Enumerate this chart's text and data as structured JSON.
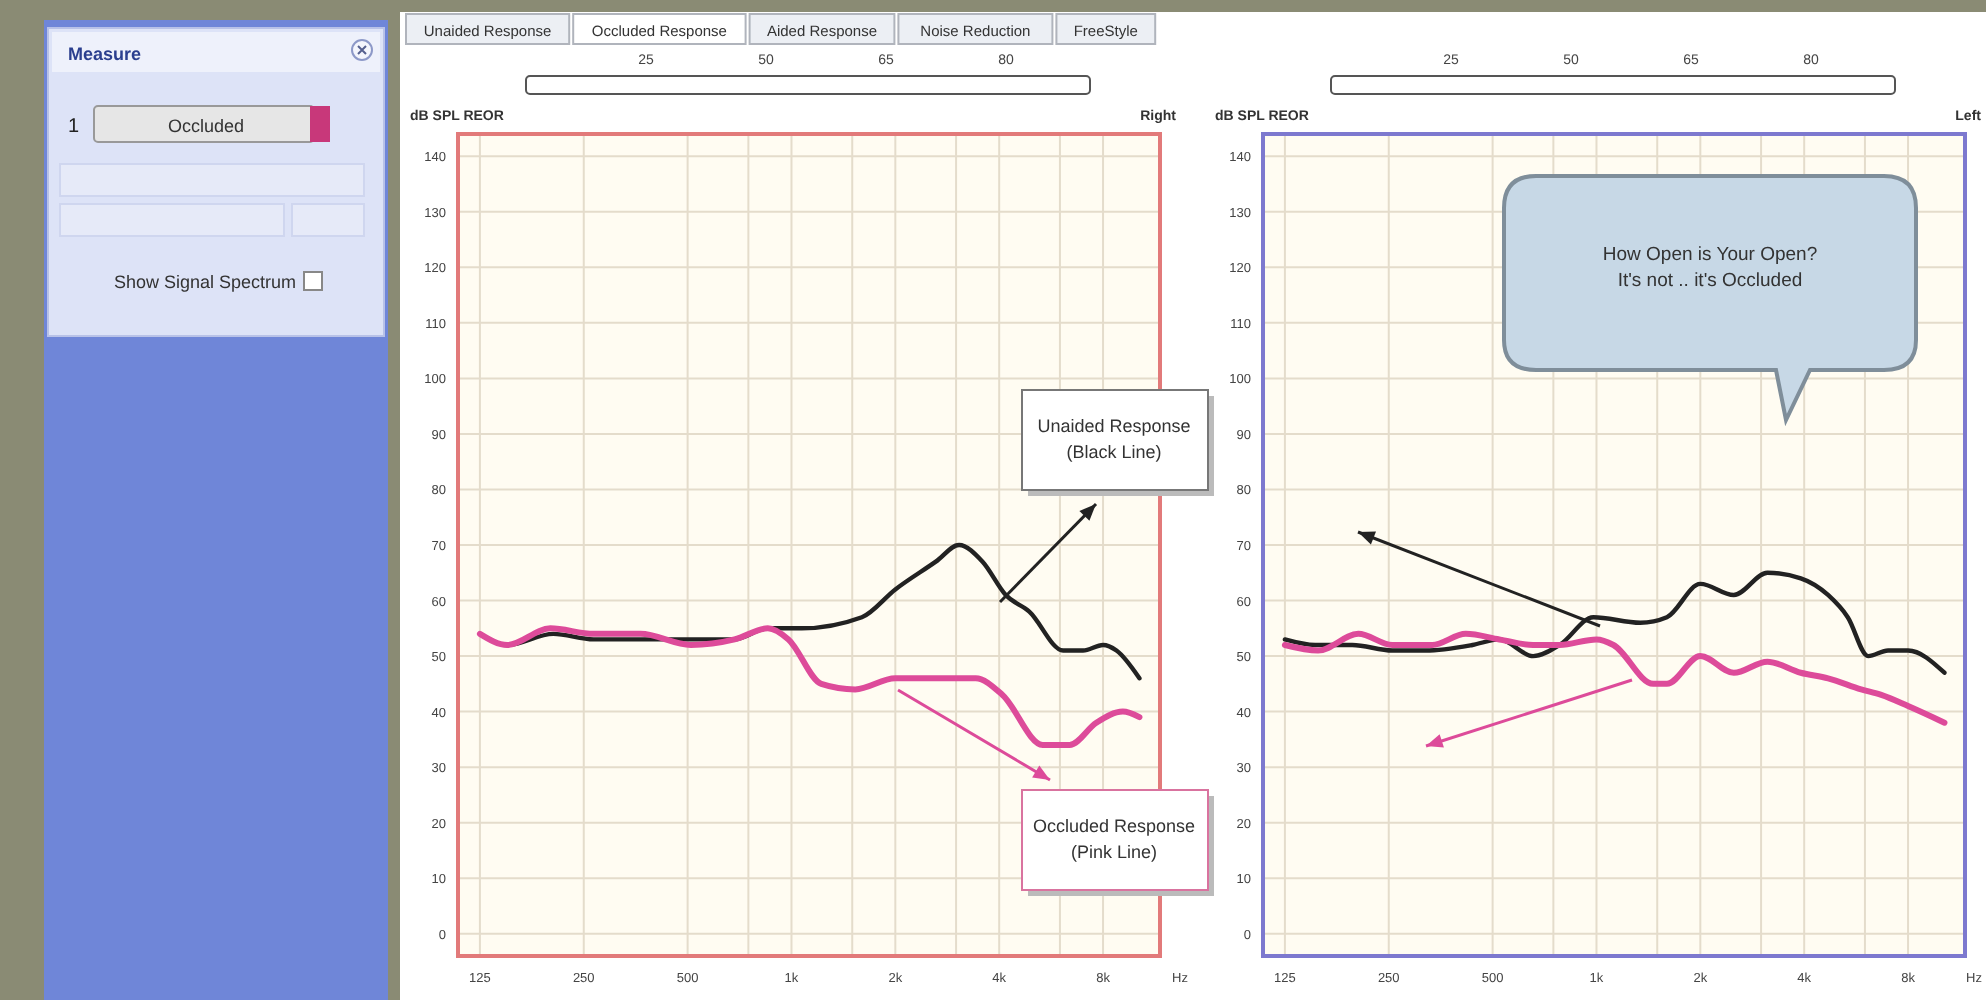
{
  "chart_data": [
    {
      "type": "other",
      "title": "Measure",
      "annotations": [
        "1",
        "Occluded",
        "Show Signal Spectrum",
        "Unaided Response",
        "Occluded Response",
        "Aided Response",
        "Noise Reduction",
        "FreeStyle"
      ]
    },
    {
      "type": "line",
      "title": "Right",
      "ylabel": "dB SPL REOR",
      "xlabel": "Hz",
      "log": "x",
      "grid": true,
      "xlim": [
        108,
        11700
      ],
      "ylim": [
        -4,
        144
      ],
      "xticks": [
        125,
        250,
        500,
        {
          "value": 750,
          "label": null
        },
        {
          "value": 1000,
          "label": "1k"
        },
        {
          "value": 1500,
          "label": null
        },
        {
          "value": 2000,
          "label": "2k"
        },
        {
          "value": 3000,
          "label": null
        },
        {
          "value": 4000,
          "label": "4k"
        },
        {
          "value": 6000,
          "label": null
        },
        {
          "value": 8000,
          "label": "8k"
        }
      ],
      "yticks": [
        0,
        10,
        20,
        30,
        40,
        50,
        60,
        70,
        80,
        90,
        100,
        110,
        120,
        130,
        140
      ],
      "annotations": [
        "25",
        "50",
        "65",
        "80",
        "Unaided Response\n(Black Line)",
        "Occluded Response\n(Pink Line)"
      ],
      "series": [
        {
          "color": "#222222",
          "x": [
            125,
            150,
            204,
            267,
            437,
            511,
            684,
            854,
            1071,
            1600,
            2000,
            2620,
            3060,
            3580,
            4180,
            4890,
            6130,
            7000,
            8000,
            8750,
            10200
          ],
          "values": [
            54,
            52,
            54,
            53,
            53,
            53,
            53,
            55,
            55,
            57,
            62,
            67,
            70,
            67,
            61,
            58,
            51,
            51,
            52,
            51,
            46
          ]
        },
        {
          "color": "#dd4b9a",
          "x": [
            125,
            150,
            200,
            267,
            365,
            511,
            684,
            854,
            980,
            1220,
            1530,
            2000,
            2620,
            3420,
            4090,
            5350,
            6400,
            7650,
            9130,
            10200
          ],
          "values": [
            54,
            52,
            55,
            54,
            54,
            52,
            53,
            55,
            53,
            45,
            44,
            46,
            46,
            46,
            43,
            34,
            34,
            38,
            40,
            39
          ]
        }
      ]
    },
    {
      "type": "line",
      "title": "Left",
      "ylabel": "dB SPL REOR",
      "xlabel": "Hz",
      "log": "x",
      "grid": true,
      "xlim": [
        108,
        11700
      ],
      "ylim": [
        -4,
        144
      ],
      "xticks": [
        125,
        250,
        500,
        {
          "value": 750,
          "label": null
        },
        {
          "value": 1000,
          "label": "1k"
        },
        {
          "value": 1500,
          "label": null
        },
        {
          "value": 2000,
          "label": "2k"
        },
        {
          "value": 3000,
          "label": null
        },
        {
          "value": 4000,
          "label": "4k"
        },
        {
          "value": 6000,
          "label": null
        },
        {
          "value": 8000,
          "label": "8k"
        }
      ],
      "yticks": [
        0,
        10,
        20,
        30,
        40,
        50,
        60,
        70,
        80,
        90,
        100,
        110,
        120,
        130,
        140
      ],
      "annotations": [
        "25",
        "50",
        "65",
        "80",
        "How Open is Your Open?\nIt's not .. it's Occluded"
      ],
      "series": [
        {
          "color": "#222222",
          "x": [
            125,
            153,
            196,
            256,
            320,
            437,
            523,
            655,
            782,
            980,
            1340,
            1600,
            2000,
            2500,
            3130,
            3910,
            4690,
            5350,
            6130,
            7000,
            8000,
            10200
          ],
          "values": [
            53,
            52,
            52,
            51,
            51,
            52,
            53,
            50,
            52,
            57,
            56,
            57,
            63,
            61,
            65,
            64,
            61,
            57,
            50,
            51,
            51,
            47
          ]
        },
        {
          "color": "#dd4b9a",
          "x": [
            125,
            156,
            204,
            256,
            334,
            418,
            523,
            655,
            782,
            1000,
            1120,
            1460,
            1600,
            2000,
            2500,
            3130,
            3910,
            4690,
            5850,
            6690,
            8000,
            10200
          ],
          "values": [
            52,
            51,
            54,
            52,
            52,
            54,
            53,
            52,
            52,
            53,
            52,
            45,
            45,
            50,
            47,
            49,
            47,
            46,
            44,
            43,
            41,
            38
          ]
        }
      ]
    }
  ]
}
